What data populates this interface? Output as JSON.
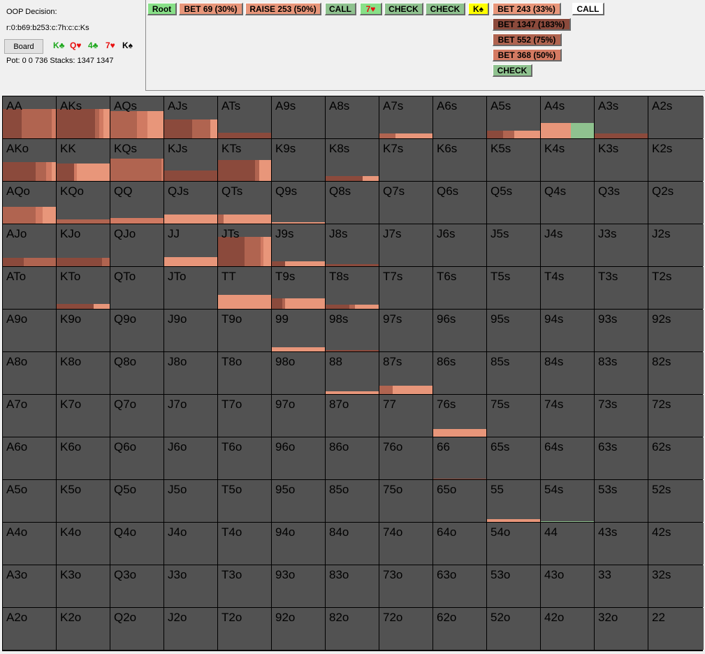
{
  "info": {
    "decision": "OOP Decision:",
    "path": "r:0:b69:b253:c:7h:c:c:Ks",
    "board_button": "Board",
    "board_cards": [
      {
        "text": "K♣",
        "color": "#1fa81f"
      },
      {
        "text": "Q♥",
        "color": "#e81010"
      },
      {
        "text": "4♣",
        "color": "#1fa81f"
      },
      {
        "text": "7♥",
        "color": "#e81010"
      },
      {
        "text": "K♠",
        "color": "#000000"
      }
    ],
    "pot_stacks": "Pot: 0 0 736 Stacks: 1347 1347"
  },
  "actions": [
    {
      "label": "Root",
      "bg": "#88e088",
      "fg": "#000000"
    },
    {
      "label": "BET 69 (30%)",
      "bg": "#e8967a",
      "fg": "#000000"
    },
    {
      "label": "RAISE 253 (50%)",
      "bg": "#e8967a",
      "fg": "#000000"
    },
    {
      "label": "CALL",
      "bg": "#8fc28f",
      "fg": "#000000"
    },
    {
      "label": "7♥",
      "bg": "#88e088",
      "fg": "#e81010"
    },
    {
      "label": "CHECK",
      "bg": "#8fc28f",
      "fg": "#000000"
    },
    {
      "label": "CHECK",
      "bg": "#8fc28f",
      "fg": "#000000"
    },
    {
      "label": "K♠",
      "bg": "#ffff00",
      "fg": "#000000"
    },
    {
      "label": "BET 243 (33%)",
      "bg": "#e8967a",
      "fg": "#000000"
    },
    {
      "label": "CALL",
      "bg": "#ffffff",
      "fg": "#000000"
    },
    {
      "label": "BET 1347 (183%)",
      "bg": "#8b4a3c",
      "fg": "#000000"
    },
    {
      "label": "BET 552 (75%)",
      "bg": "#b06450",
      "fg": "#000000"
    },
    {
      "label": "BET 368 (50%)",
      "bg": "#d47a62",
      "fg": "#000000"
    },
    {
      "label": "CHECK",
      "bg": "#8fc28f",
      "fg": "#000000"
    }
  ],
  "grid": {
    "colors": {
      "bet1347": "#8b4a3c",
      "bet552": "#b06450",
      "bet368": "#d07a62",
      "bet243": "#e8967a",
      "check": "#8fc28f",
      "empty": "#525252"
    },
    "rows": [
      [
        "AA",
        "AKs",
        "AQs",
        "AJs",
        "ATs",
        "A9s",
        "A8s",
        "A7s",
        "A6s",
        "A5s",
        "A4s",
        "A3s",
        "A2s"
      ],
      [
        "AKo",
        "KK",
        "KQs",
        "KJs",
        "KTs",
        "K9s",
        "K8s",
        "K7s",
        "K6s",
        "K5s",
        "K4s",
        "K3s",
        "K2s"
      ],
      [
        "AQo",
        "KQo",
        "QQ",
        "QJs",
        "QTs",
        "Q9s",
        "Q8s",
        "Q7s",
        "Q6s",
        "Q5s",
        "Q4s",
        "Q3s",
        "Q2s"
      ],
      [
        "AJo",
        "KJo",
        "QJo",
        "JJ",
        "JTs",
        "J9s",
        "J8s",
        "J7s",
        "J6s",
        "J5s",
        "J4s",
        "J3s",
        "J2s"
      ],
      [
        "ATo",
        "KTo",
        "QTo",
        "JTo",
        "TT",
        "T9s",
        "T8s",
        "T7s",
        "T6s",
        "T5s",
        "T4s",
        "T3s",
        "T2s"
      ],
      [
        "A9o",
        "K9o",
        "Q9o",
        "J9o",
        "T9o",
        "99",
        "98s",
        "97s",
        "96s",
        "95s",
        "94s",
        "93s",
        "92s"
      ],
      [
        "A8o",
        "K8o",
        "Q8o",
        "J8o",
        "T8o",
        "98o",
        "88",
        "87s",
        "86s",
        "85s",
        "84s",
        "83s",
        "82s"
      ],
      [
        "A7o",
        "K7o",
        "Q7o",
        "J7o",
        "T7o",
        "97o",
        "87o",
        "77",
        "76s",
        "75s",
        "74s",
        "73s",
        "72s"
      ],
      [
        "A6o",
        "K6o",
        "Q6o",
        "J6o",
        "T6o",
        "96o",
        "86o",
        "76o",
        "66",
        "65s",
        "64s",
        "63s",
        "62s"
      ],
      [
        "A5o",
        "K5o",
        "Q5o",
        "J5o",
        "T5o",
        "95o",
        "85o",
        "75o",
        "65o",
        "55",
        "54s",
        "53s",
        "52s"
      ],
      [
        "A4o",
        "K4o",
        "Q4o",
        "J4o",
        "T4o",
        "94o",
        "84o",
        "74o",
        "64o",
        "54o",
        "44",
        "43s",
        "42s"
      ],
      [
        "A3o",
        "K3o",
        "Q3o",
        "J3o",
        "T3o",
        "93o",
        "83o",
        "73o",
        "63o",
        "53o",
        "43o",
        "33",
        "32s"
      ],
      [
        "A2o",
        "K2o",
        "Q2o",
        "J2o",
        "T2o",
        "92o",
        "82o",
        "72o",
        "62o",
        "52o",
        "42o",
        "32o",
        "22"
      ]
    ],
    "frequencies": {
      "AA": {
        "height": 0.7,
        "segments": [
          [
            "bet1347",
            0.35
          ],
          [
            "bet552",
            0.57
          ],
          [
            "bet368",
            0.08
          ]
        ]
      },
      "AKs": {
        "height": 0.7,
        "segments": [
          [
            "bet1347",
            0.72
          ],
          [
            "bet552",
            0.08
          ],
          [
            "bet368",
            0.08
          ],
          [
            "bet243",
            0.12
          ]
        ]
      },
      "AQs": {
        "height": 0.65,
        "segments": [
          [
            "bet552",
            0.5
          ],
          [
            "bet368",
            0.2
          ],
          [
            "bet243",
            0.3
          ]
        ]
      },
      "AJs": {
        "height": 0.45,
        "segments": [
          [
            "bet1347",
            0.53
          ],
          [
            "bet552",
            0.34
          ],
          [
            "bet243",
            0.13
          ]
        ]
      },
      "ATs": {
        "height": 0.14,
        "segments": [
          [
            "bet1347",
            1.0
          ]
        ]
      },
      "A7s": {
        "height": 0.11,
        "segments": [
          [
            "bet552",
            0.3
          ],
          [
            "bet243",
            0.7
          ]
        ]
      },
      "A5s": {
        "height": 0.18,
        "segments": [
          [
            "bet1347",
            0.3
          ],
          [
            "bet552",
            0.21
          ],
          [
            "bet243",
            0.49
          ]
        ]
      },
      "A4s": {
        "height": 0.37,
        "segments": [
          [
            "bet243",
            0.57
          ],
          [
            "check",
            0.43
          ]
        ]
      },
      "A3s": {
        "height": 0.12,
        "segments": [
          [
            "bet1347",
            1.0
          ]
        ]
      },
      "AKo": {
        "height": 0.45,
        "segments": [
          [
            "bet1347",
            0.62
          ],
          [
            "bet552",
            0.2
          ],
          [
            "bet368",
            0.1
          ],
          [
            "bet243",
            0.08
          ]
        ]
      },
      "KK": {
        "height": 0.42,
        "segments": [
          [
            "bet1347",
            0.33
          ],
          [
            "bet368",
            0.05
          ],
          [
            "bet243",
            0.62
          ]
        ]
      },
      "KQs": {
        "height": 0.53,
        "segments": [
          [
            "bet552",
            0.96
          ],
          [
            "bet368",
            0.04
          ]
        ]
      },
      "KJs": {
        "height": 0.25,
        "segments": [
          [
            "bet1347",
            1.0
          ]
        ]
      },
      "KTs": {
        "height": 0.5,
        "segments": [
          [
            "bet1347",
            0.7
          ],
          [
            "bet552",
            0.08
          ],
          [
            "bet243",
            0.22
          ]
        ]
      },
      "K8s": {
        "height": 0.12,
        "segments": [
          [
            "bet1347",
            0.7
          ],
          [
            "bet243",
            0.3
          ]
        ]
      },
      "AQo": {
        "height": 0.4,
        "segments": [
          [
            "bet552",
            0.62
          ],
          [
            "bet368",
            0.13
          ],
          [
            "bet243",
            0.25
          ]
        ]
      },
      "KQo": {
        "height": 0.1,
        "segments": [
          [
            "bet552",
            1.0
          ]
        ]
      },
      "QQ": {
        "height": 0.13,
        "segments": [
          [
            "bet368",
            1.0
          ]
        ]
      },
      "QJs": {
        "height": 0.22,
        "segments": [
          [
            "bet243",
            1.0
          ]
        ]
      },
      "QTs": {
        "height": 0.22,
        "segments": [
          [
            "bet552",
            0.11
          ],
          [
            "bet243",
            0.89
          ]
        ]
      },
      "Q9s": {
        "height": 0.04,
        "segments": [
          [
            "bet243",
            1.0
          ]
        ]
      },
      "AJo": {
        "height": 0.2,
        "segments": [
          [
            "bet1347",
            0.4
          ],
          [
            "bet552",
            0.6
          ]
        ]
      },
      "KJo": {
        "height": 0.2,
        "segments": [
          [
            "bet1347",
            0.85
          ],
          [
            "bet552",
            0.15
          ]
        ]
      },
      "JJ": {
        "height": 0.22,
        "segments": [
          [
            "bet243",
            1.0
          ]
        ]
      },
      "JTs": {
        "height": 0.7,
        "segments": [
          [
            "bet1347",
            0.5
          ],
          [
            "bet552",
            0.3
          ],
          [
            "bet368",
            0.05
          ],
          [
            "bet243",
            0.15
          ]
        ]
      },
      "J9s": {
        "height": 0.12,
        "segments": [
          [
            "bet1347",
            0.25
          ],
          [
            "bet243",
            0.75
          ]
        ]
      },
      "J8s": {
        "height": 0.05,
        "segments": [
          [
            "bet1347",
            1.0
          ]
        ]
      },
      "KTo": {
        "height": 0.12,
        "segments": [
          [
            "bet1347",
            0.7
          ],
          [
            "bet243",
            0.3
          ]
        ]
      },
      "TT": {
        "height": 0.33,
        "segments": [
          [
            "bet243",
            1.0
          ]
        ]
      },
      "T9s": {
        "height": 0.25,
        "segments": [
          [
            "bet1347",
            0.2
          ],
          [
            "bet552",
            0.05
          ],
          [
            "bet243",
            0.75
          ]
        ]
      },
      "T8s": {
        "height": 0.1,
        "segments": [
          [
            "bet1347",
            0.45
          ],
          [
            "bet552",
            0.1
          ],
          [
            "bet243",
            0.45
          ]
        ]
      },
      "99": {
        "height": 0.1,
        "segments": [
          [
            "bet243",
            1.0
          ]
        ]
      },
      "98s": {
        "height": 0.03,
        "segments": [
          [
            "bet1347",
            1.0
          ]
        ]
      },
      "88": {
        "height": 0.07,
        "segments": [
          [
            "bet243",
            1.0
          ]
        ]
      },
      "87s": {
        "height": 0.2,
        "segments": [
          [
            "bet552",
            0.25
          ],
          [
            "bet243",
            0.75
          ]
        ]
      },
      "76s": {
        "height": 0.18,
        "segments": [
          [
            "bet243",
            1.0
          ]
        ]
      },
      "66": {
        "height": 0.02,
        "segments": [
          [
            "bet1347",
            1.0
          ]
        ]
      },
      "55": {
        "height": 0.07,
        "segments": [
          [
            "bet243",
            1.0
          ]
        ]
      },
      "54s": {
        "height": 0.02,
        "segments": [
          [
            "check",
            1.0
          ]
        ]
      }
    }
  }
}
